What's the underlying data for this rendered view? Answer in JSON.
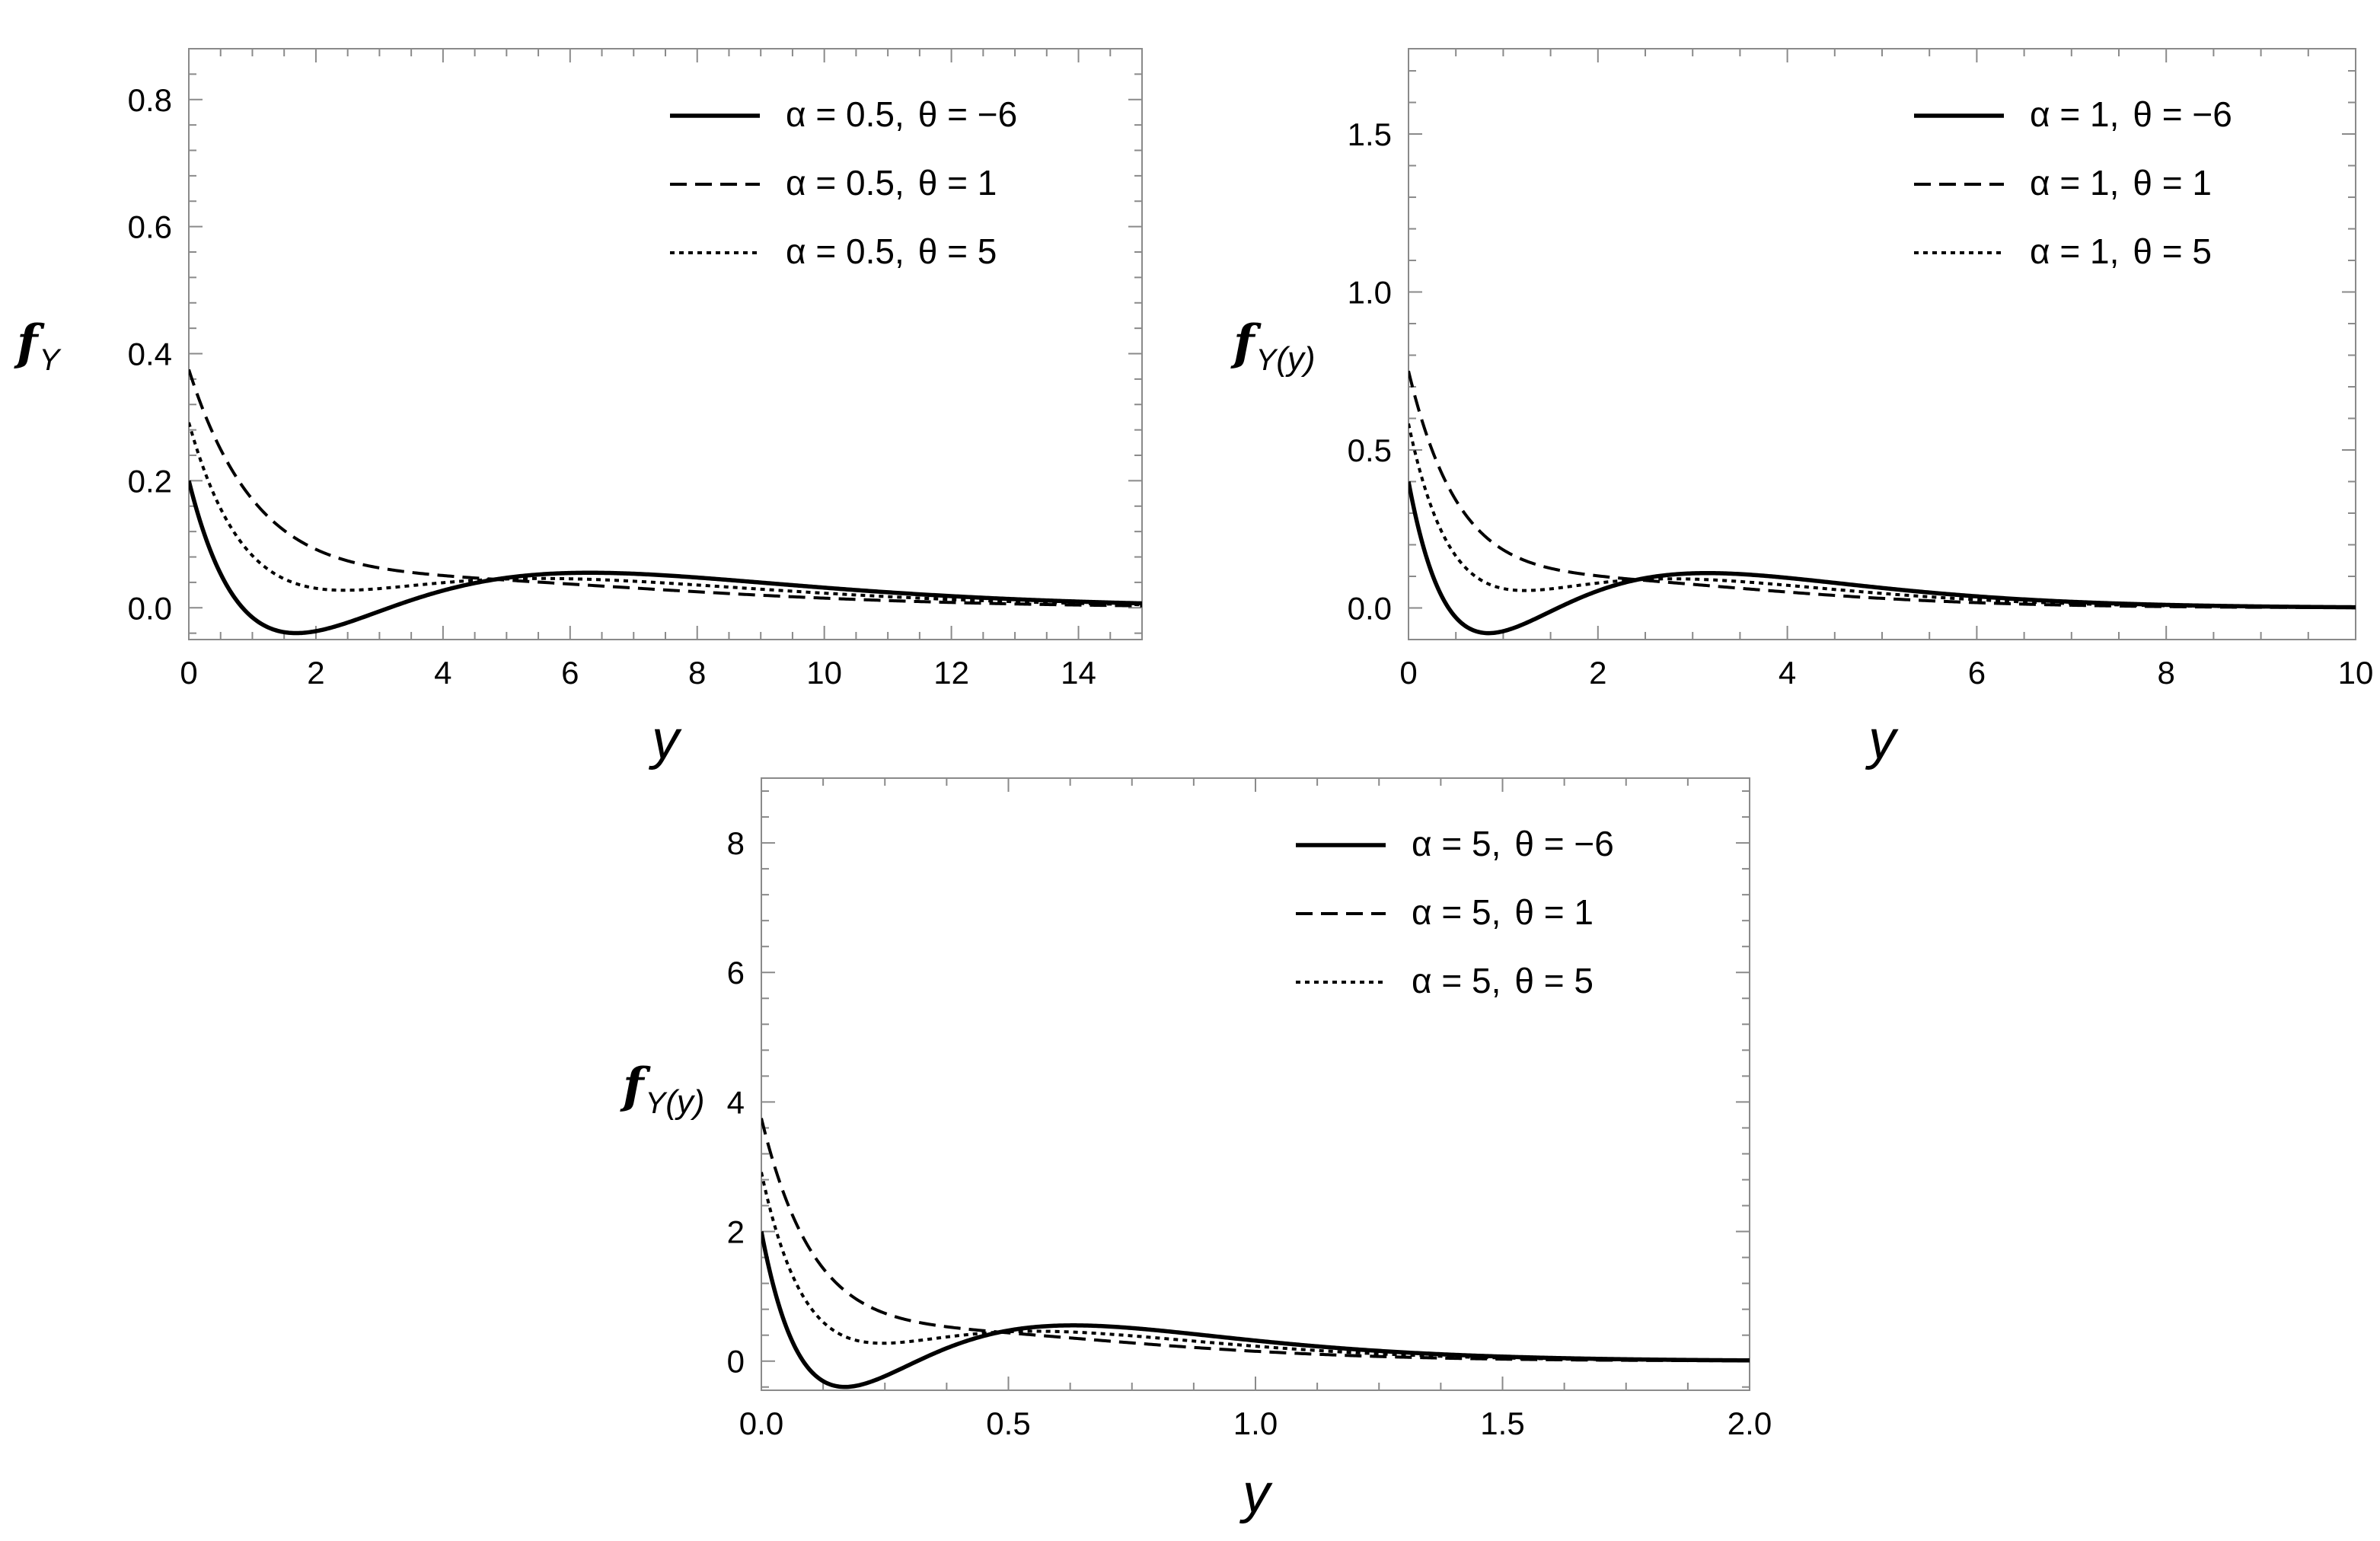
{
  "chart_data": [
    {
      "type": "line",
      "title": "",
      "xlabel": "y",
      "ylabel_main": "f",
      "ylabel_sub": "Y",
      "ylabel_arg": "",
      "xlim": [
        0,
        15
      ],
      "ylim": [
        -0.05,
        0.88
      ],
      "xticks": [
        "0",
        "2",
        "4",
        "6",
        "8",
        "10",
        "12",
        "14"
      ],
      "yticks": [
        "0.0",
        "0.2",
        "0.4",
        "0.6",
        "0.8"
      ],
      "grid": false,
      "legend_position": "top-right",
      "series": [
        {
          "name_alpha": "α =  0.5,",
          "name_theta": "θ =  −6",
          "alpha": 0.5,
          "theta": -6,
          "style": "solid"
        },
        {
          "name_alpha": "α =  0.5,",
          "name_theta": "θ =  1",
          "alpha": 0.5,
          "theta": 1,
          "style": "dashed"
        },
        {
          "name_alpha": "α =  0.5,",
          "name_theta": "θ =  5",
          "alpha": 0.5,
          "theta": 5,
          "style": "dotted"
        }
      ]
    },
    {
      "type": "line",
      "title": "",
      "xlabel": "y",
      "ylabel_main": "f",
      "ylabel_sub": "Y",
      "ylabel_arg": "(y)",
      "xlim": [
        0,
        10
      ],
      "ylim": [
        -0.1,
        1.77
      ],
      "xticks": [
        "0",
        "2",
        "4",
        "6",
        "8",
        "10"
      ],
      "yticks": [
        "0.0",
        "0.5",
        "1.0",
        "1.5"
      ],
      "grid": false,
      "legend_position": "top-right",
      "series": [
        {
          "name_alpha": "α =  1,",
          "name_theta": "θ =  −6",
          "alpha": 1,
          "theta": -6,
          "style": "solid"
        },
        {
          "name_alpha": "α =  1,",
          "name_theta": "θ =  1",
          "alpha": 1,
          "theta": 1,
          "style": "dashed"
        },
        {
          "name_alpha": "α =  1,",
          "name_theta": "θ =  5",
          "alpha": 1,
          "theta": 5,
          "style": "dotted"
        }
      ]
    },
    {
      "type": "line",
      "title": "",
      "xlabel": "y",
      "ylabel_main": "f",
      "ylabel_sub": "Y",
      "ylabel_arg": "(y)",
      "xlim": [
        0,
        2
      ],
      "ylim": [
        -0.45,
        9.0
      ],
      "xticks": [
        "0.0",
        "0.5",
        "1.0",
        "1.5",
        "2.0"
      ],
      "yticks": [
        "0",
        "2",
        "4",
        "6",
        "8"
      ],
      "grid": false,
      "legend_position": "top-right",
      "series": [
        {
          "name_alpha": "α =  5,",
          "name_theta": "θ =  −6",
          "alpha": 5,
          "theta": -6,
          "style": "solid"
        },
        {
          "name_alpha": "α =  5,",
          "name_theta": "θ =  1",
          "alpha": 5,
          "theta": 1,
          "style": "dashed"
        },
        {
          "name_alpha": "α =  5,",
          "name_theta": "θ =  5",
          "alpha": 5,
          "theta": 5,
          "style": "dotted"
        }
      ]
    }
  ]
}
